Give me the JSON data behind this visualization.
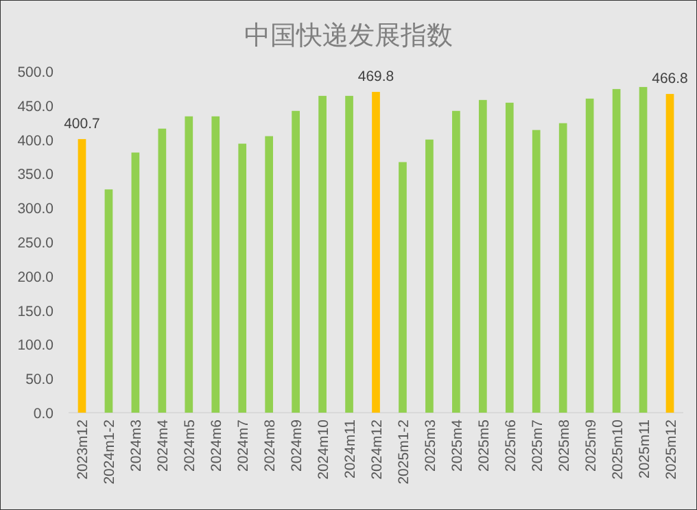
{
  "chart_data": {
    "type": "bar",
    "title": "中国快递发展指数",
    "categories": [
      "2023m12",
      "2024m1-2",
      "2024m3",
      "2024m4",
      "2024m5",
      "2024m6",
      "2024m7",
      "2024m8",
      "2024m9",
      "2024m10",
      "2024m11",
      "2024m12",
      "2025m1-2",
      "2025m3",
      "2025m4",
      "2025m5",
      "2025m6",
      "2025m7",
      "2025m8",
      "2025m9",
      "2025m10",
      "2025m11",
      "2025m12"
    ],
    "values": [
      400.7,
      327,
      381,
      416,
      434,
      434,
      394,
      405,
      442,
      464,
      464,
      469.8,
      367,
      400,
      442,
      458,
      454,
      414,
      424,
      460,
      474,
      477,
      466.8
    ],
    "colors": [
      "#ffc000",
      "#92d050",
      "#92d050",
      "#92d050",
      "#92d050",
      "#92d050",
      "#92d050",
      "#92d050",
      "#92d050",
      "#92d050",
      "#92d050",
      "#ffc000",
      "#92d050",
      "#92d050",
      "#92d050",
      "#92d050",
      "#92d050",
      "#92d050",
      "#92d050",
      "#92d050",
      "#92d050",
      "#92d050",
      "#ffc000"
    ],
    "value_labels": [
      "400.7",
      null,
      null,
      null,
      null,
      null,
      null,
      null,
      null,
      null,
      null,
      "469.8",
      null,
      null,
      null,
      null,
      null,
      null,
      null,
      null,
      null,
      null,
      "466.8"
    ],
    "ylim": [
      0,
      500
    ],
    "yticks": [
      {
        "value": 0,
        "label": "0.0"
      },
      {
        "value": 50,
        "label": "50.0"
      },
      {
        "value": 100,
        "label": "100.0"
      },
      {
        "value": 150,
        "label": "150.0"
      },
      {
        "value": 200,
        "label": "200.0"
      },
      {
        "value": 250,
        "label": "250.0"
      },
      {
        "value": 300,
        "label": "300.0"
      },
      {
        "value": 350,
        "label": "350.0"
      },
      {
        "value": 400,
        "label": "400.0"
      },
      {
        "value": 450,
        "label": "450.0"
      },
      {
        "value": 500,
        "label": "500.0"
      }
    ],
    "grid": false
  }
}
